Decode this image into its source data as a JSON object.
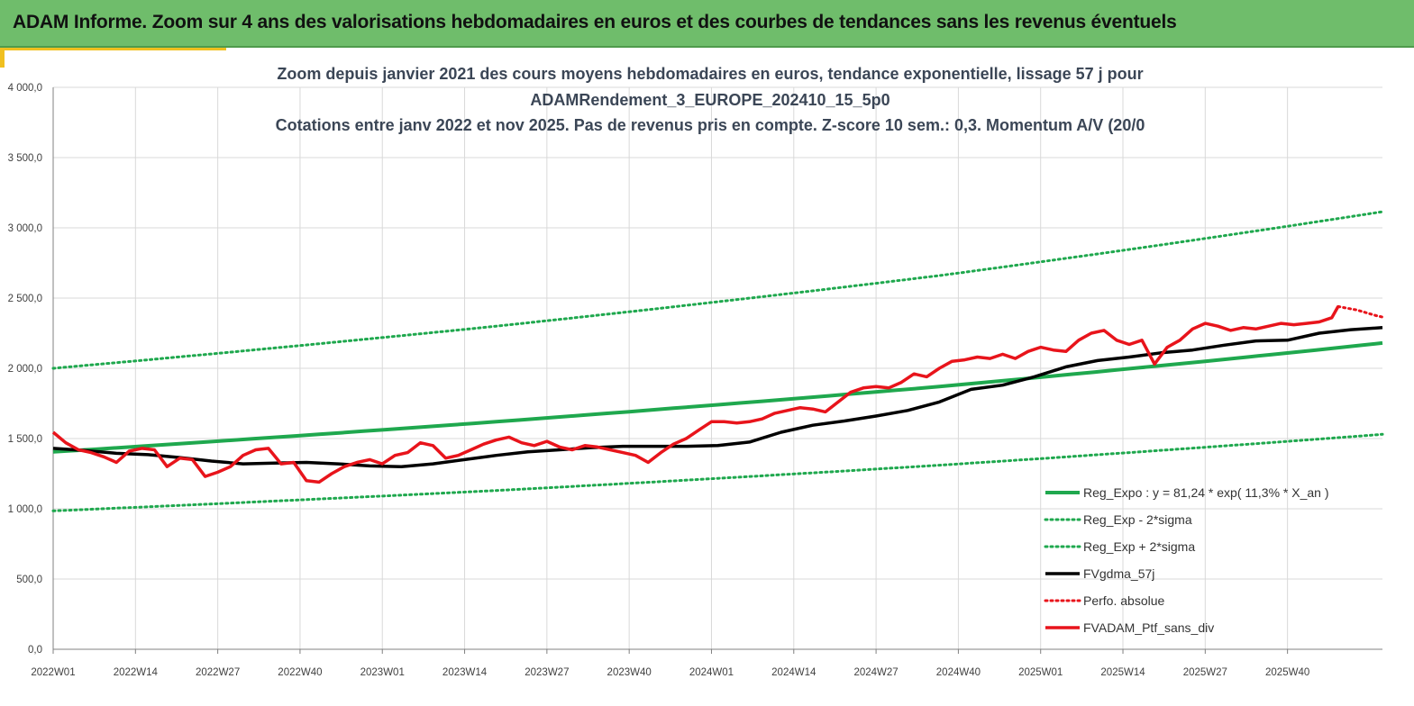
{
  "header": {
    "title": "ADAM Informe. Zoom sur 4 ans des valorisations hebdomadaires en euros et des courbes de tendances sans les revenus éventuels"
  },
  "colors": {
    "banner": "#6fbd6b",
    "accent": "#f0c020",
    "regression": "#1fa84e",
    "moving_average": "#000000",
    "portfolio": "#e8141b"
  },
  "chart_data": {
    "type": "line",
    "title_lines": [
      "Zoom depuis janvier 2021 des cours moyens hebdomadaires  en euros, tendance exponentielle, lissage 57 j pour",
      "ADAMRendement_3_EUROPE_202410_15_5p0",
      "Cotations  entre janv 2022 et nov 2025. Pas de revenus pris en compte. Z-score 10 sem.: 0,3. Momentum A/V (20/0"
    ],
    "xlabel": "",
    "ylabel": "",
    "x_tick_labels": [
      "2022W01",
      "2022W14",
      "2022W27",
      "2022W40",
      "2023W01",
      "2023W14",
      "2023W27",
      "2023W40",
      "2024W01",
      "2024W14",
      "2024W27",
      "2024W40",
      "2025W01",
      "2025W14",
      "2025W27",
      "2025W40"
    ],
    "x_range_weeks": [
      0,
      210
    ],
    "ylim": [
      0,
      4000
    ],
    "y_tick_values": [
      0,
      500,
      1000,
      1500,
      2000,
      2500,
      3000,
      3500,
      4000
    ],
    "y_tick_labels": [
      "0,0",
      "500,0",
      "1 000,0",
      "1 500,0",
      "2 000,0",
      "2 500,0",
      "3 000,0",
      "3 500,0",
      "4 000,0"
    ],
    "grid": true,
    "legend_position": "bottom-right",
    "legend": [
      {
        "label": "Reg_Expo : y = 81,24 * exp( 11,3% *  X_an )",
        "color": "#1fa84e",
        "style": "solid-thick"
      },
      {
        "label": "Reg_Exp - 2*sigma",
        "color": "#1fa84e",
        "style": "dotted"
      },
      {
        "label": "Reg_Exp + 2*sigma",
        "color": "#1fa84e",
        "style": "dotted"
      },
      {
        "label": "FVgdma_57j",
        "color": "#000000",
        "style": "solid"
      },
      {
        "label": "Perfo. absolue",
        "color": "#e8141b",
        "style": "dotted"
      },
      {
        "label": "FVADAM_Ptf_sans_div",
        "color": "#e8141b",
        "style": "solid"
      }
    ],
    "series": [
      {
        "name": "Reg_Expo : y = 81,24 * exp( 11,3% *  X_an )",
        "color": "#1fa84e",
        "style": "solid-thick",
        "x": [
          0,
          70,
          140,
          210
        ],
        "y": [
          1405,
          1620,
          1870,
          2180
        ]
      },
      {
        "name": "Reg_Exp - 2*sigma",
        "color": "#1fa84e",
        "style": "dotted",
        "x": [
          0,
          70,
          140,
          210
        ],
        "y": [
          985,
          1130,
          1310,
          1530
        ]
      },
      {
        "name": "Reg_Exp + 2*sigma",
        "color": "#1fa84e",
        "style": "dotted",
        "x": [
          0,
          70,
          140,
          210
        ],
        "y": [
          2000,
          2300,
          2660,
          3115
        ]
      },
      {
        "name": "FVgdma_57j",
        "color": "#000000",
        "style": "solid",
        "x": [
          0,
          5,
          10,
          15,
          20,
          25,
          30,
          35,
          40,
          45,
          50,
          55,
          60,
          65,
          70,
          75,
          80,
          85,
          90,
          95,
          100,
          105,
          110,
          115,
          120,
          125,
          130,
          135,
          140,
          145,
          150,
          155,
          160,
          165,
          170,
          175,
          180,
          185,
          190,
          195,
          200,
          205,
          210
        ],
        "y": [
          1430,
          1415,
          1395,
          1385,
          1365,
          1340,
          1320,
          1325,
          1330,
          1320,
          1305,
          1300,
          1320,
          1350,
          1380,
          1405,
          1420,
          1435,
          1445,
          1445,
          1445,
          1450,
          1475,
          1545,
          1595,
          1625,
          1660,
          1700,
          1760,
          1850,
          1880,
          1940,
          2010,
          2055,
          2080,
          2110,
          2130,
          2165,
          2195,
          2200,
          2250,
          2275,
          2290
        ]
      },
      {
        "name": "Perfo. absolue",
        "color": "#e8141b",
        "style": "dotted",
        "x": [
          203,
          206,
          209,
          210
        ],
        "y": [
          2440,
          2415,
          2375,
          2365
        ]
      },
      {
        "name": "FVADAM_Ptf_sans_div",
        "color": "#e8141b",
        "style": "solid",
        "x": [
          0,
          2,
          4,
          6,
          8,
          10,
          12,
          14,
          16,
          18,
          20,
          22,
          24,
          26,
          28,
          30,
          32,
          34,
          36,
          38,
          40,
          42,
          44,
          46,
          48,
          50,
          52,
          54,
          56,
          58,
          60,
          62,
          64,
          66,
          68,
          70,
          72,
          74,
          76,
          78,
          80,
          82,
          84,
          86,
          88,
          90,
          92,
          94,
          96,
          98,
          100,
          102,
          104,
          106,
          108,
          110,
          112,
          114,
          116,
          118,
          120,
          122,
          124,
          126,
          128,
          130,
          132,
          134,
          136,
          138,
          140,
          142,
          144,
          146,
          148,
          150,
          152,
          154,
          156,
          158,
          160,
          162,
          164,
          166,
          168,
          170,
          172,
          174,
          176,
          178,
          180,
          182,
          184,
          186,
          188,
          190,
          192,
          194,
          196,
          198,
          200,
          202,
          203
        ],
        "y": [
          1545,
          1470,
          1420,
          1400,
          1370,
          1330,
          1410,
          1430,
          1420,
          1300,
          1360,
          1350,
          1230,
          1260,
          1300,
          1380,
          1420,
          1430,
          1320,
          1330,
          1200,
          1190,
          1250,
          1300,
          1330,
          1350,
          1320,
          1380,
          1400,
          1470,
          1450,
          1360,
          1380,
          1420,
          1460,
          1490,
          1510,
          1470,
          1450,
          1480,
          1440,
          1420,
          1450,
          1440,
          1420,
          1400,
          1380,
          1330,
          1400,
          1460,
          1500,
          1560,
          1620,
          1620,
          1610,
          1620,
          1640,
          1680,
          1700,
          1720,
          1710,
          1690,
          1760,
          1830,
          1860,
          1870,
          1860,
          1900,
          1960,
          1940,
          2000,
          2050,
          2060,
          2080,
          2070,
          2100,
          2070,
          2120,
          2150,
          2130,
          2120,
          2200,
          2250,
          2270,
          2200,
          2170,
          2200,
          2030,
          2150,
          2200,
          2280,
          2320,
          2300,
          2270,
          2290,
          2280,
          2300,
          2320,
          2310,
          2320,
          2330,
          2360,
          2440
        ]
      }
    ]
  }
}
